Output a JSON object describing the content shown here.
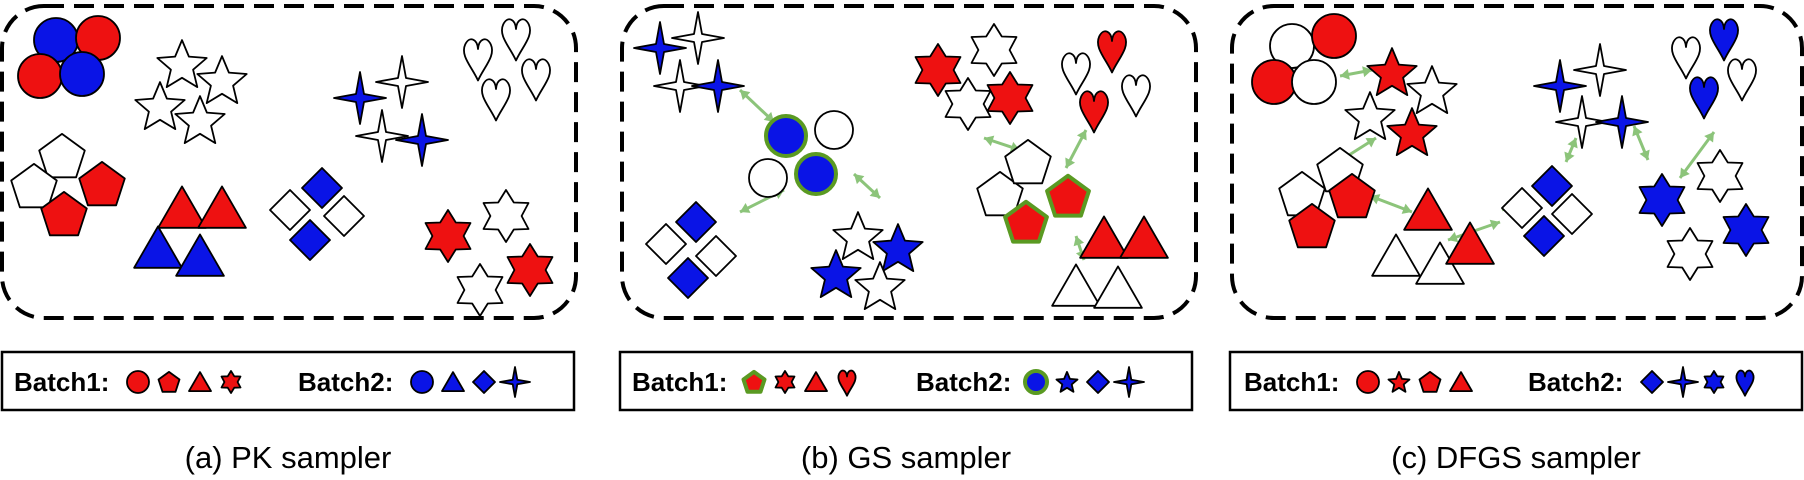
{
  "colors": {
    "red": "#ee1111",
    "blue": "#0a14e6",
    "white": "#ffffff",
    "arrow": "#8cc47a",
    "highlight": "#5a9a22",
    "ink": "#000000"
  },
  "panels": [
    {
      "id": "pk",
      "caption": "(a) PK sampler",
      "batch1": {
        "label": "Batch1:",
        "icons": [
          {
            "shape": "circle",
            "fill": "red"
          },
          {
            "shape": "pentagon",
            "fill": "red"
          },
          {
            "shape": "triangle",
            "fill": "red"
          },
          {
            "shape": "star6",
            "fill": "red"
          }
        ]
      },
      "batch2": {
        "label": "Batch2:",
        "icons": [
          {
            "shape": "circle",
            "fill": "blue"
          },
          {
            "shape": "triangle",
            "fill": "blue"
          },
          {
            "shape": "diamond",
            "fill": "blue"
          },
          {
            "shape": "star4",
            "fill": "blue"
          }
        ]
      }
    },
    {
      "id": "gs",
      "caption": "(b) GS sampler",
      "batch1": {
        "label": "Batch1:",
        "icons": [
          {
            "shape": "pentagon",
            "fill": "red",
            "highlight": true
          },
          {
            "shape": "star6",
            "fill": "red"
          },
          {
            "shape": "triangle",
            "fill": "red"
          },
          {
            "shape": "heart",
            "fill": "red"
          }
        ]
      },
      "batch2": {
        "label": "Batch2:",
        "icons": [
          {
            "shape": "circle",
            "fill": "blue",
            "highlight": true
          },
          {
            "shape": "star5",
            "fill": "blue"
          },
          {
            "shape": "diamond",
            "fill": "blue"
          },
          {
            "shape": "star4",
            "fill": "blue"
          }
        ]
      }
    },
    {
      "id": "dfgs",
      "caption": "(c) DFGS sampler",
      "batch1": {
        "label": "Batch1:",
        "icons": [
          {
            "shape": "circle",
            "fill": "red"
          },
          {
            "shape": "star5",
            "fill": "red"
          },
          {
            "shape": "pentagon",
            "fill": "red"
          },
          {
            "shape": "triangle",
            "fill": "red"
          }
        ]
      },
      "batch2": {
        "label": "Batch2:",
        "icons": [
          {
            "shape": "diamond",
            "fill": "blue"
          },
          {
            "shape": "star4",
            "fill": "blue"
          },
          {
            "shape": "star6",
            "fill": "blue"
          },
          {
            "shape": "heart",
            "fill": "blue"
          }
        ]
      }
    }
  ]
}
